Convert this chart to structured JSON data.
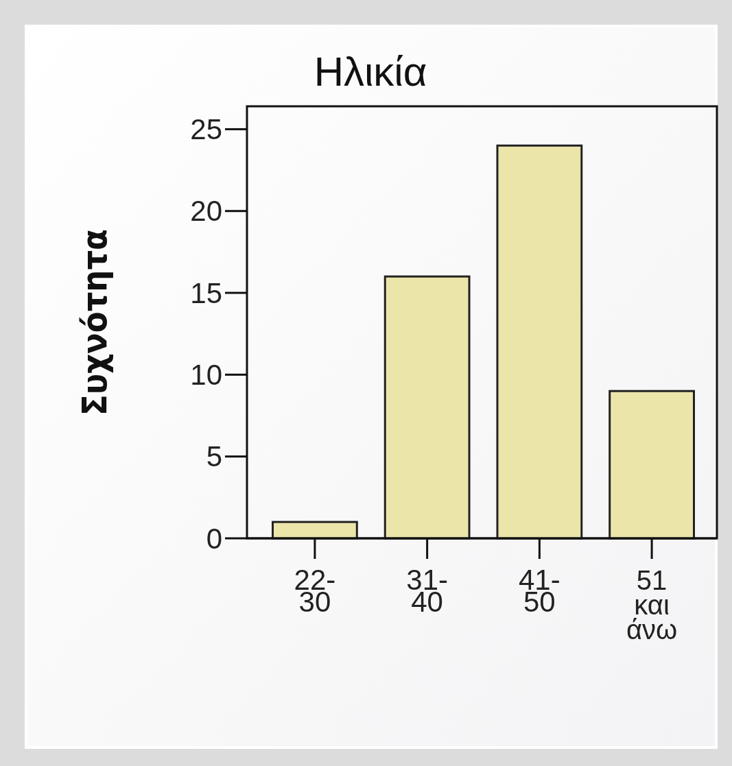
{
  "chart_data": {
    "type": "bar",
    "title": "Ηλικία",
    "ylabel": "Συχνότητα",
    "categories": [
      "22-30",
      "31-40",
      "41-50",
      "51 και άνω"
    ],
    "values": [
      1,
      16,
      24,
      9
    ],
    "color": "#ebe5aa",
    "ylim": [
      0,
      26.4
    ],
    "yticks": [
      0,
      5,
      10,
      15,
      20,
      25
    ],
    "grid": false
  }
}
